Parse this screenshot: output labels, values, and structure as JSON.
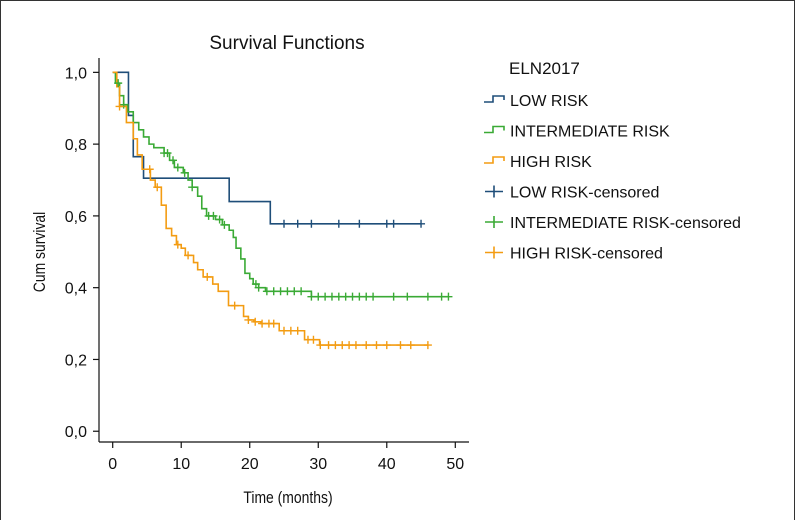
{
  "chart_data": {
    "type": "line",
    "title": "Survival Functions",
    "xlabel": "Time (months)",
    "ylabel": "Cum survival",
    "xlim": [
      -2,
      52
    ],
    "ylim": [
      -0.03,
      1.04
    ],
    "xticks": [
      "0",
      "10",
      "20",
      "30",
      "40",
      "50"
    ],
    "xtick_values": [
      0,
      10,
      20,
      30,
      40,
      50
    ],
    "yticks": [
      "0,0",
      "0,2",
      "0,4",
      "0,6",
      "0,8",
      "1,0"
    ],
    "ytick_values": [
      0,
      0.2,
      0.4,
      0.6,
      0.8,
      1.0
    ],
    "legend_title": "ELN2017",
    "legend_position": "right",
    "series": [
      {
        "name": "LOW RISK",
        "color": "#1f4e79",
        "steps": [
          [
            0,
            1.0
          ],
          [
            2.3,
            0.88
          ],
          [
            3,
            0.765
          ],
          [
            4.5,
            0.705
          ],
          [
            17,
            0.64
          ],
          [
            23,
            0.578
          ],
          [
            45,
            0.578
          ]
        ],
        "censored": [
          25,
          27,
          29,
          33,
          36,
          40,
          41,
          45
        ]
      },
      {
        "name": "INTERMEDIATE RISK",
        "color": "#3aaa35",
        "steps": [
          [
            0,
            1.0
          ],
          [
            0.4,
            0.97
          ],
          [
            1,
            0.935
          ],
          [
            1.6,
            0.91
          ],
          [
            2.2,
            0.89
          ],
          [
            3,
            0.86
          ],
          [
            3.8,
            0.84
          ],
          [
            4.5,
            0.82
          ],
          [
            5.3,
            0.8
          ],
          [
            6,
            0.79
          ],
          [
            7.5,
            0.775
          ],
          [
            8.3,
            0.755
          ],
          [
            9,
            0.735
          ],
          [
            10.3,
            0.72
          ],
          [
            11,
            0.7
          ],
          [
            11.6,
            0.68
          ],
          [
            12.4,
            0.655
          ],
          [
            13,
            0.62
          ],
          [
            13.7,
            0.6
          ],
          [
            15,
            0.59
          ],
          [
            16,
            0.575
          ],
          [
            17,
            0.56
          ],
          [
            17.6,
            0.54
          ],
          [
            18,
            0.51
          ],
          [
            18.7,
            0.48
          ],
          [
            19.3,
            0.44
          ],
          [
            20,
            0.425
          ],
          [
            20.5,
            0.41
          ],
          [
            21.3,
            0.4
          ],
          [
            22.3,
            0.39
          ],
          [
            29,
            0.375
          ],
          [
            49,
            0.375
          ]
        ],
        "censored": [
          0.8,
          1.6,
          7.5,
          8,
          8.8,
          9.5,
          10.5,
          11.6,
          14,
          14.7,
          15.6,
          16.3,
          20.9,
          21.3,
          22.5,
          23.5,
          24.5,
          25.5,
          26.5,
          27.5,
          29,
          30,
          31,
          32,
          33,
          34,
          35,
          36,
          37,
          38,
          41,
          43,
          46,
          48,
          49
        ]
      },
      {
        "name": "HIGH RISK",
        "color": "#f39c12",
        "steps": [
          [
            0,
            1.0
          ],
          [
            0.6,
            0.96
          ],
          [
            1,
            0.905
          ],
          [
            2,
            0.86
          ],
          [
            3,
            0.815
          ],
          [
            3.6,
            0.77
          ],
          [
            4.3,
            0.73
          ],
          [
            5.5,
            0.7
          ],
          [
            6.2,
            0.68
          ],
          [
            7.1,
            0.63
          ],
          [
            7.8,
            0.565
          ],
          [
            8.6,
            0.545
          ],
          [
            9.3,
            0.52
          ],
          [
            10,
            0.51
          ],
          [
            10.6,
            0.49
          ],
          [
            11.8,
            0.47
          ],
          [
            12.4,
            0.45
          ],
          [
            13.2,
            0.43
          ],
          [
            14.6,
            0.41
          ],
          [
            15.4,
            0.39
          ],
          [
            16.9,
            0.35
          ],
          [
            19.1,
            0.32
          ],
          [
            19.8,
            0.31
          ],
          [
            20.6,
            0.305
          ],
          [
            21.6,
            0.3
          ],
          [
            24.3,
            0.28
          ],
          [
            28,
            0.255
          ],
          [
            30.2,
            0.24
          ],
          [
            46,
            0.24
          ]
        ],
        "censored": [
          1,
          5.4,
          6.5,
          9.5,
          11,
          13.8,
          17.8,
          19.8,
          20.8,
          21.8,
          22.8,
          23.5,
          25,
          26,
          27,
          28.5,
          29.3,
          30.3,
          31.5,
          32.5,
          33.5,
          34.5,
          35.5,
          37,
          38.5,
          40,
          42,
          43.5,
          46
        ]
      }
    ],
    "legend_entries": [
      {
        "name": "LOW RISK",
        "color": "#1f4e79",
        "kind": "step"
      },
      {
        "name": "INTERMEDIATE RISK",
        "color": "#3aaa35",
        "kind": "step"
      },
      {
        "name": "HIGH RISK",
        "color": "#f39c12",
        "kind": "step"
      },
      {
        "name": "LOW RISK-censored",
        "color": "#1f4e79",
        "kind": "plus"
      },
      {
        "name": "INTERMEDIATE RISK-censored",
        "color": "#3aaa35",
        "kind": "plus"
      },
      {
        "name": "HIGH RISK-censored",
        "color": "#f39c12",
        "kind": "plus"
      }
    ]
  }
}
